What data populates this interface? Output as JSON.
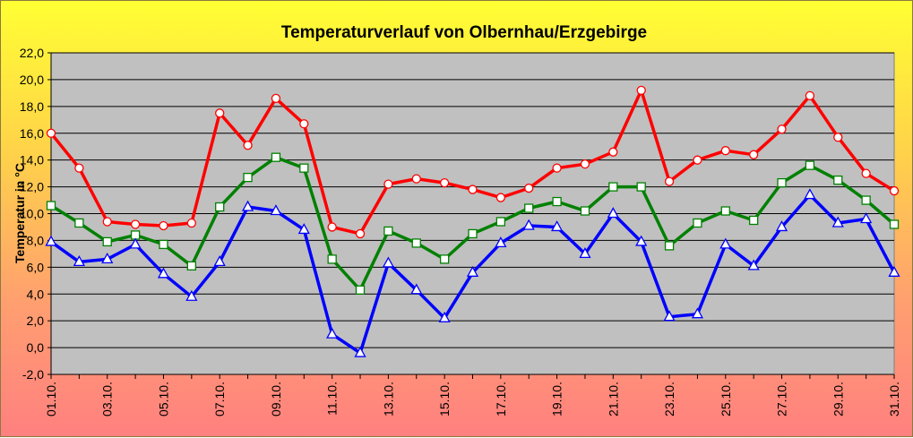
{
  "chart_data": {
    "type": "line",
    "title": "Temperaturverlauf von Olbernhau/Erzgebirge",
    "ylabel": "Temperatur in °C",
    "xlabel": "",
    "ylim": [
      -2,
      22
    ],
    "y_ticks": [
      "-2,0",
      "0,0",
      "2,0",
      "4,0",
      "6,0",
      "8,0",
      "10,0",
      "12,0",
      "14,0",
      "16,0",
      "18,0",
      "20,0",
      "22,0"
    ],
    "x": [
      "01.10.",
      "02.10.",
      "03.10.",
      "04.10.",
      "05.10.",
      "06.10.",
      "07.10.",
      "08.10.",
      "09.10.",
      "10.10.",
      "11.10.",
      "12.10.",
      "13.10.",
      "14.10.",
      "15.10.",
      "16.10.",
      "17.10.",
      "18.10.",
      "19.10.",
      "20.10.",
      "21.10.",
      "22.10.",
      "23.10.",
      "24.10.",
      "25.10.",
      "26.10.",
      "27.10.",
      "28.10.",
      "29.10.",
      "30.10.",
      "31.10."
    ],
    "x_tick_labels": [
      "01.10.",
      "03.10.",
      "05.10.",
      "07.10.",
      "09.10.",
      "11.10.",
      "13.10.",
      "15.10.",
      "17.10.",
      "19.10.",
      "21.10.",
      "23.10.",
      "25.10.",
      "27.10.",
      "29.10.",
      "31.10."
    ],
    "grid": true,
    "legend": "none",
    "plot_background": "#c0c0c0",
    "series": [
      {
        "color": "#ff0000",
        "marker": "circle",
        "values": [
          16.0,
          13.4,
          9.4,
          9.2,
          9.1,
          9.3,
          17.5,
          15.1,
          18.6,
          16.7,
          9.0,
          8.5,
          12.2,
          12.6,
          12.3,
          11.8,
          11.2,
          11.9,
          13.4,
          13.7,
          14.6,
          19.2,
          12.4,
          14.0,
          14.7,
          14.4,
          16.3,
          18.8,
          15.7,
          13.0,
          11.7
        ]
      },
      {
        "color": "#008000",
        "marker": "square",
        "values": [
          10.6,
          9.3,
          7.9,
          8.4,
          7.7,
          6.1,
          10.5,
          12.7,
          14.2,
          13.4,
          6.6,
          4.3,
          8.7,
          7.8,
          6.6,
          8.5,
          9.4,
          10.4,
          10.9,
          10.2,
          12.0,
          12.0,
          7.6,
          9.3,
          10.2,
          9.5,
          12.3,
          13.6,
          12.5,
          11.0,
          9.2
        ]
      },
      {
        "color": "#0000ff",
        "marker": "triangle",
        "values": [
          7.9,
          6.4,
          6.6,
          7.7,
          5.5,
          3.8,
          6.4,
          10.5,
          10.2,
          8.8,
          1.0,
          -0.4,
          6.3,
          4.3,
          2.2,
          5.6,
          7.8,
          9.1,
          9.0,
          7.0,
          10.0,
          7.9,
          2.3,
          2.5,
          7.7,
          6.1,
          9.0,
          11.4,
          9.3,
          9.6,
          5.6
        ]
      }
    ]
  }
}
